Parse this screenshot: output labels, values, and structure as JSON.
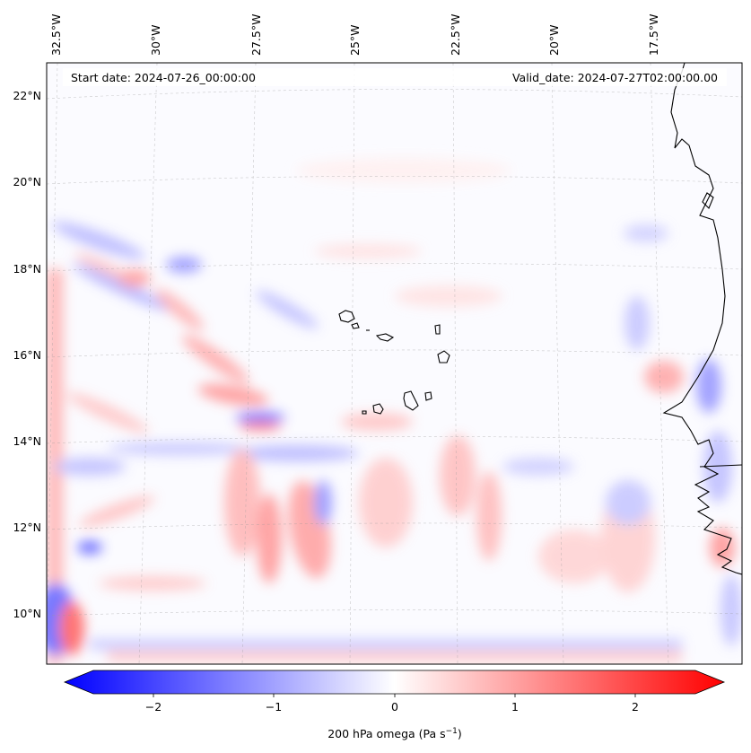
{
  "header": {
    "start_date": "Start date: 2024-07-26_00:00:00",
    "valid_date": "Valid_date: 2024-07-27T02:00:00.00"
  },
  "longitude_labels": [
    "32.5°W",
    "30°W",
    "27.5°W",
    "25°W",
    "22.5°W",
    "20°W",
    "17.5°W"
  ],
  "latitude_labels": [
    "22°N",
    "20°N",
    "18°N",
    "16°N",
    "14°N",
    "12°N",
    "10°N"
  ],
  "colorbar": {
    "label_prefix": "200 hPa omega (Pa s",
    "label_exp": "−1",
    "label_suffix": ")",
    "ticks": [
      "−2",
      "−1",
      "0",
      "1",
      "2"
    ],
    "range": [
      -2.6,
      2.6
    ],
    "colors": {
      "min": "#0000ff",
      "mid": "#ffffff",
      "max": "#ff0000"
    }
  },
  "map": {
    "variable": "omega",
    "level": "200 hPa",
    "extent_lon": [
      -33,
      -15
    ],
    "extent_lat": [
      9,
      23
    ],
    "gridlines": true,
    "coastline_color": "#000000"
  }
}
